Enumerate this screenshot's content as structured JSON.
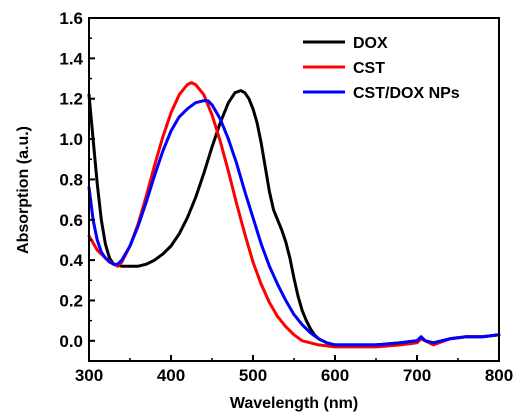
{
  "chart_data": {
    "type": "line",
    "title": "",
    "xlabel": "Wavelength (nm)",
    "ylabel": "Absorption (a.u.)",
    "xlim": [
      300,
      800
    ],
    "ylim": [
      -0.1,
      1.6
    ],
    "xticks": [
      "300",
      "400",
      "500",
      "600",
      "700",
      "800"
    ],
    "yticks": [
      "0.0",
      "0.2",
      "0.4",
      "0.6",
      "0.8",
      "1.0",
      "1.2",
      "1.4",
      "1.6"
    ],
    "grid": false,
    "legend_position": "top-right",
    "series": [
      {
        "name": "DOX",
        "color": "#000000",
        "points": [
          [
            300,
            1.22
          ],
          [
            305,
            1.0
          ],
          [
            310,
            0.78
          ],
          [
            315,
            0.6
          ],
          [
            320,
            0.48
          ],
          [
            325,
            0.41
          ],
          [
            330,
            0.38
          ],
          [
            340,
            0.37
          ],
          [
            350,
            0.37
          ],
          [
            360,
            0.37
          ],
          [
            370,
            0.38
          ],
          [
            380,
            0.4
          ],
          [
            390,
            0.43
          ],
          [
            400,
            0.47
          ],
          [
            410,
            0.53
          ],
          [
            420,
            0.61
          ],
          [
            430,
            0.71
          ],
          [
            440,
            0.83
          ],
          [
            450,
            0.96
          ],
          [
            460,
            1.08
          ],
          [
            470,
            1.18
          ],
          [
            478,
            1.23
          ],
          [
            485,
            1.24
          ],
          [
            490,
            1.23
          ],
          [
            495,
            1.2
          ],
          [
            500,
            1.15
          ],
          [
            505,
            1.08
          ],
          [
            510,
            0.98
          ],
          [
            515,
            0.86
          ],
          [
            520,
            0.74
          ],
          [
            525,
            0.65
          ],
          [
            530,
            0.6
          ],
          [
            535,
            0.55
          ],
          [
            540,
            0.49
          ],
          [
            545,
            0.41
          ],
          [
            550,
            0.31
          ],
          [
            555,
            0.22
          ],
          [
            560,
            0.15
          ],
          [
            565,
            0.1
          ],
          [
            570,
            0.06
          ],
          [
            575,
            0.03
          ],
          [
            580,
            0.01
          ],
          [
            590,
            -0.01
          ],
          [
            600,
            -0.02
          ],
          [
            620,
            -0.02
          ],
          [
            650,
            -0.02
          ],
          [
            680,
            -0.01
          ],
          [
            700,
            0.0
          ],
          [
            705,
            0.02
          ],
          [
            710,
            0.0
          ],
          [
            720,
            -0.01
          ],
          [
            740,
            0.01
          ],
          [
            760,
            0.02
          ],
          [
            780,
            0.02
          ],
          [
            800,
            0.03
          ]
        ]
      },
      {
        "name": "CST",
        "color": "#ff0000",
        "points": [
          [
            300,
            0.52
          ],
          [
            310,
            0.45
          ],
          [
            320,
            0.41
          ],
          [
            330,
            0.38
          ],
          [
            335,
            0.37
          ],
          [
            340,
            0.39
          ],
          [
            350,
            0.47
          ],
          [
            360,
            0.58
          ],
          [
            370,
            0.72
          ],
          [
            380,
            0.87
          ],
          [
            390,
            1.01
          ],
          [
            400,
            1.13
          ],
          [
            410,
            1.22
          ],
          [
            420,
            1.27
          ],
          [
            425,
            1.28
          ],
          [
            430,
            1.27
          ],
          [
            440,
            1.22
          ],
          [
            450,
            1.12
          ],
          [
            460,
            0.99
          ],
          [
            470,
            0.84
          ],
          [
            480,
            0.68
          ],
          [
            490,
            0.53
          ],
          [
            500,
            0.39
          ],
          [
            510,
            0.28
          ],
          [
            520,
            0.19
          ],
          [
            530,
            0.12
          ],
          [
            540,
            0.07
          ],
          [
            550,
            0.03
          ],
          [
            560,
            0.0
          ],
          [
            570,
            -0.01
          ],
          [
            580,
            -0.02
          ],
          [
            600,
            -0.03
          ],
          [
            620,
            -0.03
          ],
          [
            650,
            -0.03
          ],
          [
            680,
            -0.02
          ],
          [
            700,
            -0.01
          ],
          [
            705,
            0.01
          ],
          [
            710,
            0.0
          ],
          [
            720,
            -0.02
          ],
          [
            740,
            0.01
          ],
          [
            760,
            0.02
          ],
          [
            780,
            0.02
          ],
          [
            800,
            0.03
          ]
        ]
      },
      {
        "name": "CST/DOX NPs",
        "color": "#0000ff",
        "points": [
          [
            300,
            0.76
          ],
          [
            305,
            0.6
          ],
          [
            310,
            0.5
          ],
          [
            315,
            0.44
          ],
          [
            320,
            0.41
          ],
          [
            325,
            0.39
          ],
          [
            330,
            0.38
          ],
          [
            335,
            0.38
          ],
          [
            340,
            0.4
          ],
          [
            350,
            0.47
          ],
          [
            360,
            0.57
          ],
          [
            370,
            0.69
          ],
          [
            380,
            0.82
          ],
          [
            390,
            0.94
          ],
          [
            400,
            1.04
          ],
          [
            410,
            1.11
          ],
          [
            420,
            1.15
          ],
          [
            430,
            1.18
          ],
          [
            440,
            1.19
          ],
          [
            445,
            1.19
          ],
          [
            450,
            1.17
          ],
          [
            460,
            1.1
          ],
          [
            470,
            1.0
          ],
          [
            480,
            0.88
          ],
          [
            490,
            0.74
          ],
          [
            500,
            0.61
          ],
          [
            510,
            0.48
          ],
          [
            520,
            0.37
          ],
          [
            530,
            0.28
          ],
          [
            540,
            0.2
          ],
          [
            550,
            0.13
          ],
          [
            560,
            0.08
          ],
          [
            570,
            0.04
          ],
          [
            580,
            0.01
          ],
          [
            590,
            -0.01
          ],
          [
            600,
            -0.02
          ],
          [
            620,
            -0.02
          ],
          [
            650,
            -0.02
          ],
          [
            680,
            -0.01
          ],
          [
            700,
            0.0
          ],
          [
            705,
            0.02
          ],
          [
            710,
            0.0
          ],
          [
            720,
            -0.01
          ],
          [
            740,
            0.01
          ],
          [
            760,
            0.02
          ],
          [
            780,
            0.02
          ],
          [
            800,
            0.03
          ]
        ]
      }
    ]
  }
}
